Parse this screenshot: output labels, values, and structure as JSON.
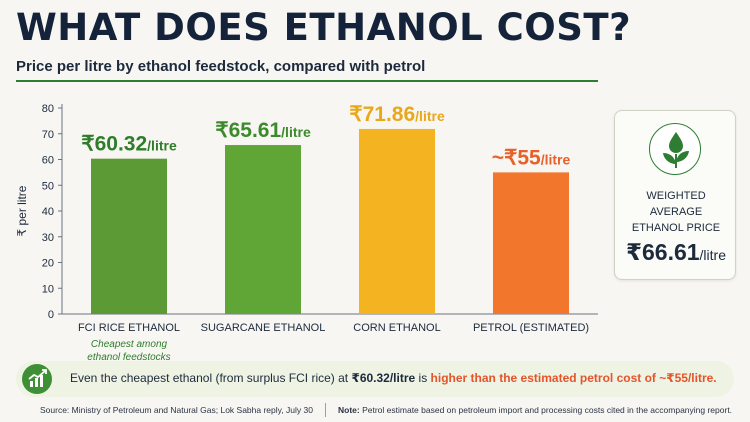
{
  "header": {
    "title": "WHAT DOES ETHANOL COST?",
    "subtitle": "Price per litre by ethanol feedstock, compared with petrol"
  },
  "chart_data": {
    "type": "bar",
    "ylabel": "₹ per litre",
    "ylim": [
      0,
      80
    ],
    "yticks": [
      0,
      10,
      20,
      30,
      40,
      50,
      60,
      70,
      80
    ],
    "categories": [
      "FCI RICE ETHANOL",
      "SUGARCANE ETHANOL",
      "CORN ETHANOL",
      "PETROL (ESTIMATED)"
    ],
    "values": [
      60.32,
      65.61,
      71.86,
      55
    ],
    "value_labels": [
      "₹60.32",
      "₹65.61",
      "₹71.86",
      "~₹55"
    ],
    "value_unit": "/litre",
    "bar_colors": [
      "#5b9a35",
      "#5fa637",
      "#f4b320",
      "#f2772c"
    ],
    "label_colors": [
      "#2f7d2b",
      "#3c8a2c",
      "#e9a81a",
      "#e8602a"
    ],
    "annotation_lines": [
      "Cheapest among",
      "ethanol feedstocks"
    ],
    "grid": false
  },
  "side_card": {
    "label_line1": "WEIGHTED AVERAGE",
    "label_line2": "ETHANOL PRICE",
    "value": "₹66.61",
    "unit": "/litre",
    "icon": "leaf-drop-icon"
  },
  "banner": {
    "icon": "growth-chart-icon",
    "text_1": "Even the cheapest ethanol (from surplus FCI rice) at ",
    "text_value": "₹60.32/litre",
    "text_2": " is ",
    "text_highlight": "higher than the estimated petrol cost of ~₹55/litre."
  },
  "footer": {
    "source": "Source: Ministry of Petroleum and Natural Gas; Lok Sabha reply, July 30",
    "note_label": "Note:",
    "note_text": " Petrol estimate based on petroleum import and processing costs cited in the accompanying report."
  },
  "colors": {
    "title": "#14223a",
    "accent_green": "#2e7d32",
    "highlight_orange": "#e5542a"
  }
}
